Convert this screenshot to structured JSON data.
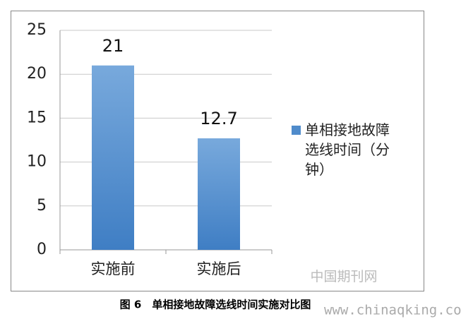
{
  "chart_data": {
    "type": "bar",
    "categories": [
      "实施前",
      "实施后"
    ],
    "series": [
      {
        "name": "单相接地故障选线时间（分钟）",
        "color": "#4f8bcb",
        "values": [
          21,
          12.7
        ]
      }
    ],
    "ylim": [
      0,
      25
    ],
    "yticks": [
      0,
      5,
      10,
      15,
      20,
      25
    ],
    "grid": true,
    "legend": "right",
    "data_labels": true,
    "caption": "图 6　单相接地故障选线时间实施对比图",
    "watermarks": [
      "中国期刊网",
      "www.chinaqking.com"
    ]
  }
}
